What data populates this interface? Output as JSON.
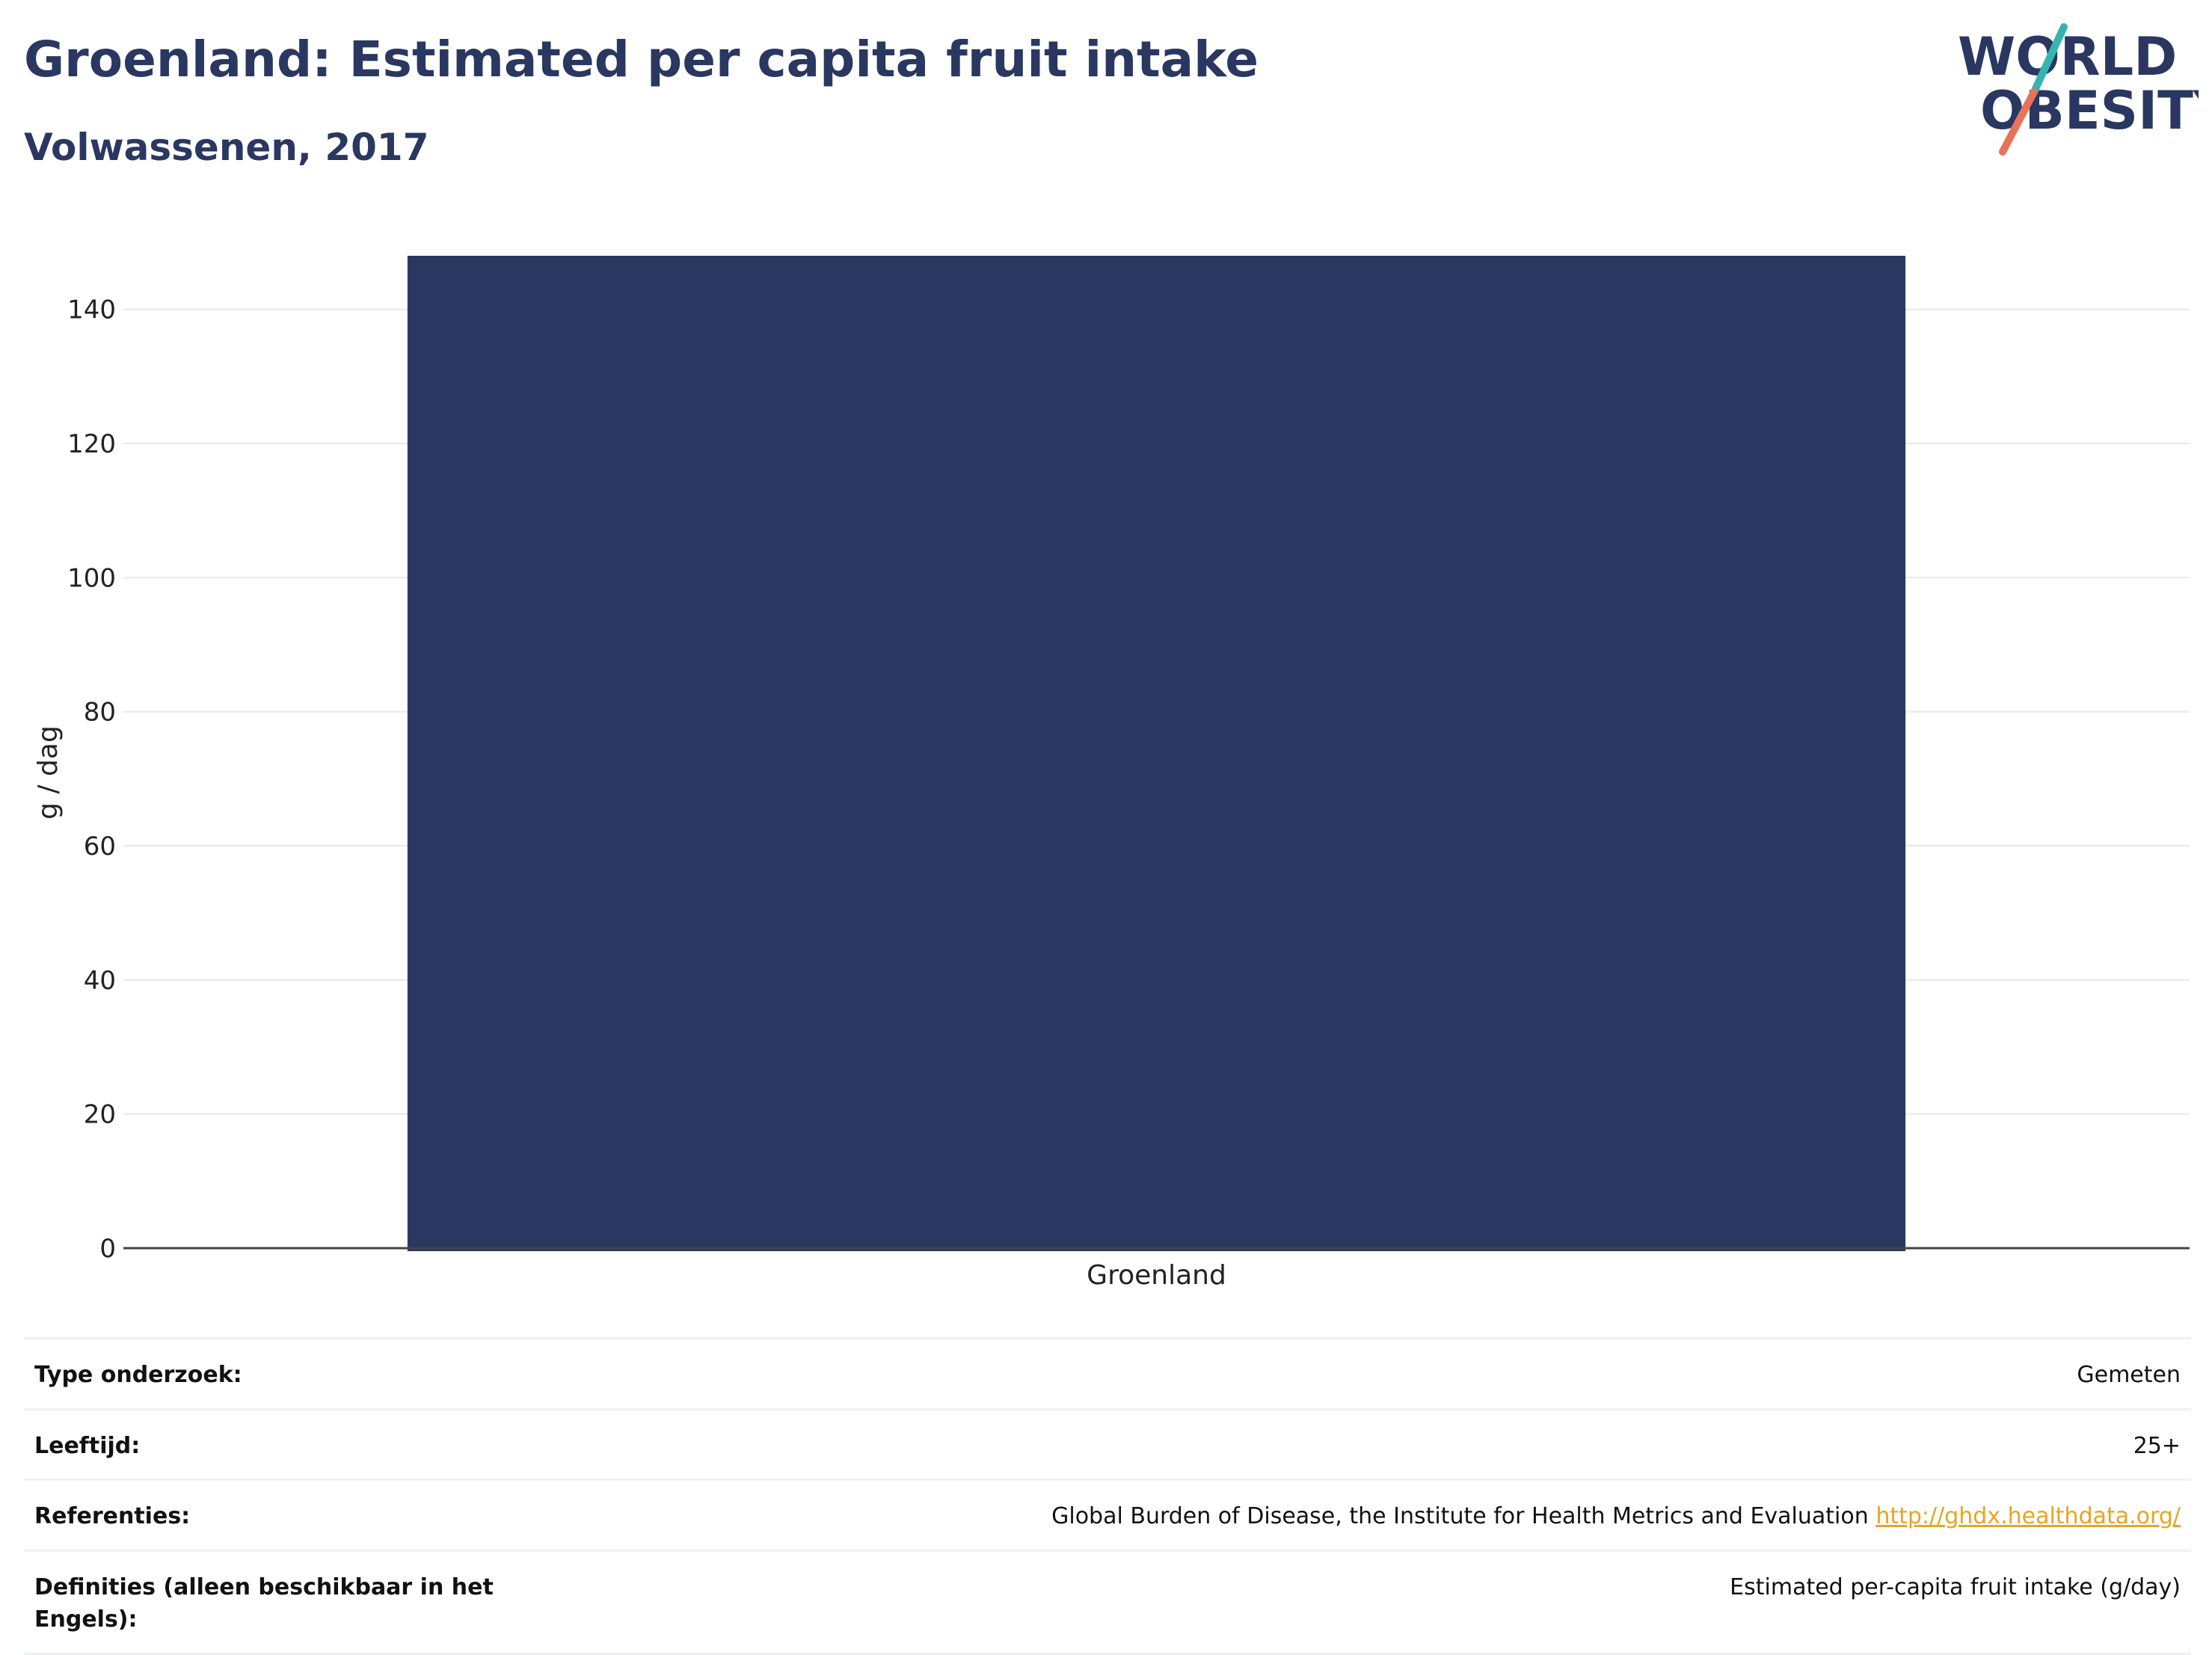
{
  "header": {
    "title": "Groenland: Estimated per capita fruit intake",
    "subtitle": "Volwassenen, 2017"
  },
  "logo": {
    "line1": "WORLD",
    "line2": "OBESITY",
    "colors": {
      "text": "#2a3761",
      "slash_top": "#36b5b0",
      "slash_bottom": "#e8735a"
    }
  },
  "chart_data": {
    "type": "bar",
    "categories": [
      "Groenland"
    ],
    "values": [
      148
    ],
    "ylabel": "g / dag",
    "xlabel": "",
    "ylim": [
      0,
      148
    ],
    "yticks": [
      0,
      20,
      40,
      60,
      80,
      100,
      120,
      140
    ],
    "grid": true,
    "bar_color": "#2a3761"
  },
  "meta": {
    "rows": [
      {
        "label": "Type onderzoek:",
        "value": "Gemeten"
      },
      {
        "label": "Leeftijd:",
        "value": "25+"
      },
      {
        "label": "Referenties:",
        "value": "Global Burden of Disease, the Institute for Health Metrics and Evaluation",
        "link": "http://ghdx.healthdata.org/"
      },
      {
        "label": "Definities (alleen beschikbaar in het Engels):",
        "value": "Estimated per-capita fruit intake (g/day)"
      }
    ]
  }
}
